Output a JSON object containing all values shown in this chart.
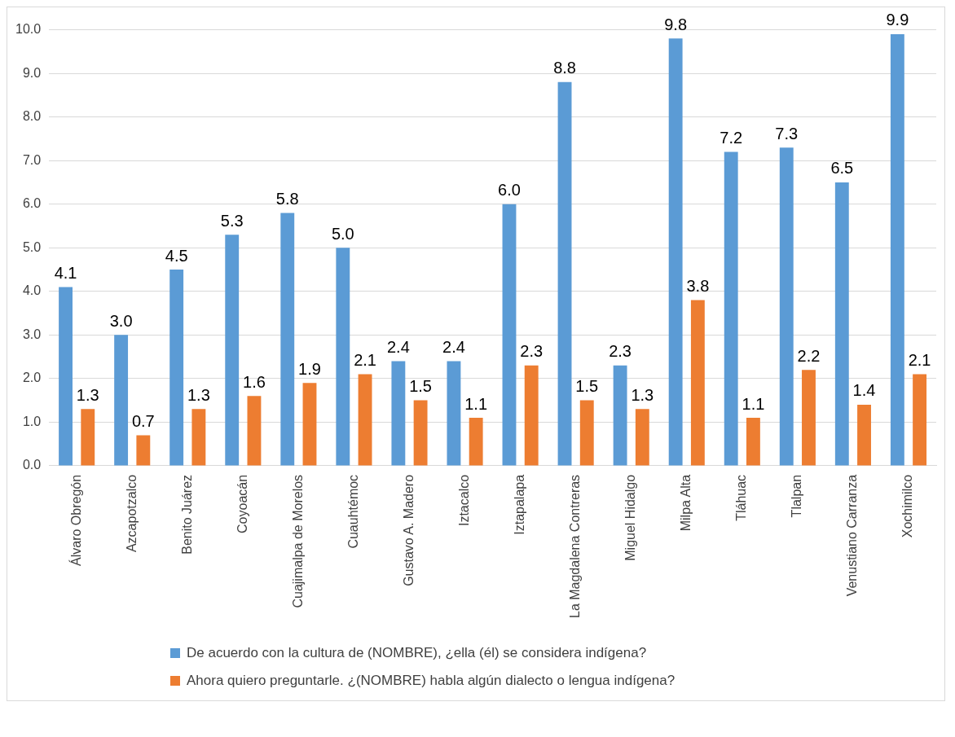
{
  "chart_data": {
    "type": "bar",
    "categories": [
      "Álvaro Obregón",
      "Azcapotzalco",
      "Benito Juárez",
      "Coyoacán",
      "Cuajimalpa de Morelos",
      "Cuauhtémoc",
      "Gustavo A. Madero",
      "Iztacalco",
      "Iztapalapa",
      "La Magdalena Contreras",
      "Miguel Hidalgo",
      "Milpa Alta",
      "Tláhuac",
      "Tlalpan",
      "Venustiano Carranza",
      "Xochimilco"
    ],
    "series": [
      {
        "name": "De acuerdo con la cultura de (NOMBRE), ¿ella (él) se considera indígena?",
        "color": "#5b9bd5",
        "values": [
          4.1,
          3.0,
          4.5,
          5.3,
          5.8,
          5.0,
          2.4,
          2.4,
          6.0,
          8.8,
          2.3,
          9.8,
          7.2,
          7.3,
          6.5,
          9.9
        ],
        "value_labels": [
          "4.1",
          "3.0",
          "4.5",
          "5.3",
          "5.8",
          "5.0",
          "2.4",
          "2.4",
          "6.0",
          "8.8",
          "2.3",
          "9.8",
          "7.2",
          "7.3",
          "6.5",
          "9.9"
        ]
      },
      {
        "name": "Ahora quiero preguntarle. ¿(NOMBRE) habla algún dialecto o lengua indígena?",
        "color": "#ed7d31",
        "values": [
          1.3,
          0.7,
          1.3,
          1.6,
          1.9,
          2.1,
          1.5,
          1.1,
          2.3,
          1.5,
          1.3,
          3.8,
          1.1,
          2.2,
          1.4,
          2.1
        ],
        "value_labels": [
          "1.3",
          "0.7",
          "1.3",
          "1.6",
          "1.9",
          "2.1",
          "1.5",
          "1.1",
          "2.3",
          "1.5",
          "1.3",
          "3.8",
          "1.1",
          "2.2",
          "1.4",
          "2.1"
        ]
      }
    ],
    "ylim": [
      0,
      10
    ],
    "yticks": [
      {
        "value": 0,
        "label": "0.0"
      },
      {
        "value": 1,
        "label": "1.0"
      },
      {
        "value": 2,
        "label": "2.0"
      },
      {
        "value": 3,
        "label": "3.0"
      },
      {
        "value": 4,
        "label": "4.0"
      },
      {
        "value": 5,
        "label": "5.0"
      },
      {
        "value": 6,
        "label": "6.0"
      },
      {
        "value": 7,
        "label": "7.0"
      },
      {
        "value": 8,
        "label": "8.0"
      },
      {
        "value": 9,
        "label": "9.0"
      },
      {
        "value": 10,
        "label": "10.0"
      }
    ],
    "grid": "y",
    "legend": "bottom"
  }
}
